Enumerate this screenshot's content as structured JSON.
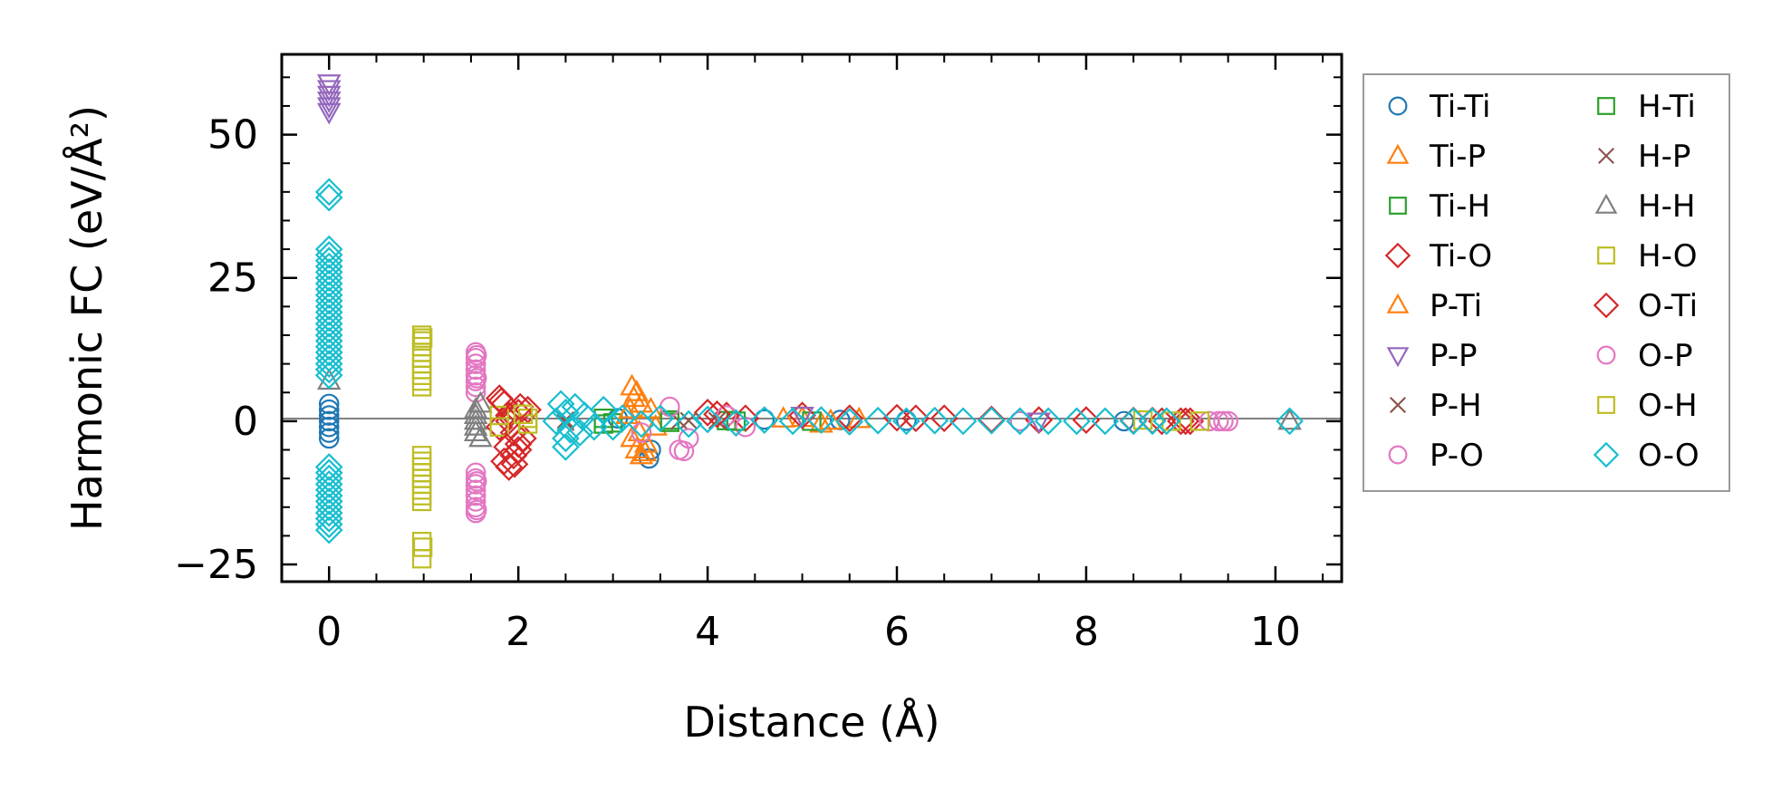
{
  "chart_data": {
    "type": "scatter",
    "xlabel": "Distance (Å)",
    "ylabel": "Harmonic FC (eV/Å²)",
    "xlim": [
      -0.5,
      10.7
    ],
    "ylim": [
      -28,
      64
    ],
    "x_ticks": [
      0,
      2,
      4,
      6,
      8,
      10
    ],
    "x_tick_labels": [
      "0",
      "2",
      "4",
      "6",
      "8",
      "10"
    ],
    "y_ticks": [
      -25,
      0,
      25,
      50
    ],
    "y_tick_labels": [
      "−25",
      "0",
      "25",
      "50"
    ],
    "zero_line": true,
    "grid": false,
    "legend_position": "outside-right",
    "legend_columns": 2,
    "series": [
      {
        "name": "Ti-Ti",
        "marker": "circle",
        "color": "#1f77b4",
        "points": [
          [
            0,
            0
          ],
          [
            0,
            2
          ],
          [
            0,
            -2
          ],
          [
            0,
            1
          ],
          [
            0,
            -1
          ],
          [
            0,
            3
          ],
          [
            0,
            -3
          ],
          [
            3.05,
            0.5
          ],
          [
            3.38,
            -6.5
          ],
          [
            3.4,
            -5
          ],
          [
            4.6,
            0.3
          ],
          [
            5.4,
            0.2
          ],
          [
            6.1,
            0.1
          ],
          [
            7.3,
            0
          ],
          [
            8.4,
            0
          ]
        ]
      },
      {
        "name": "Ti-P",
        "marker": "triangle-up",
        "color": "#ff7f0e",
        "points": [
          [
            3.2,
            6
          ],
          [
            3.25,
            5
          ],
          [
            3.3,
            3
          ],
          [
            3.2,
            -3
          ],
          [
            3.25,
            -5
          ],
          [
            3.3,
            -6
          ],
          [
            3.35,
            -4
          ],
          [
            3.15,
            1
          ],
          [
            3.4,
            2
          ],
          [
            3.45,
            -1
          ],
          [
            5.0,
            0.5
          ],
          [
            5.2,
            -0.5
          ],
          [
            5.6,
            0.3
          ]
        ]
      },
      {
        "name": "Ti-H",
        "marker": "square",
        "color": "#2ca02c",
        "points": [
          [
            2.9,
            0.5
          ],
          [
            3.0,
            -0.3
          ],
          [
            3.6,
            0.2
          ],
          [
            4.2,
            0.1
          ],
          [
            5.1,
            0
          ]
        ]
      },
      {
        "name": "Ti-O",
        "marker": "diamond",
        "color": "#d62728",
        "points": [
          [
            1.8,
            4
          ],
          [
            1.85,
            3
          ],
          [
            1.9,
            1
          ],
          [
            1.95,
            -2
          ],
          [
            2.0,
            -4
          ],
          [
            1.85,
            -7
          ],
          [
            1.9,
            -8
          ],
          [
            1.95,
            -6
          ],
          [
            2.0,
            -5
          ],
          [
            2.05,
            -3
          ],
          [
            2.1,
            2
          ],
          [
            1.8,
            -1
          ],
          [
            1.9,
            0
          ],
          [
            2.0,
            1.5
          ],
          [
            4.0,
            1.5
          ],
          [
            4.2,
            1
          ],
          [
            4.4,
            0.5
          ],
          [
            5.0,
            1
          ],
          [
            5.5,
            0.5
          ],
          [
            6.0,
            0.6
          ],
          [
            6.5,
            0.5
          ],
          [
            7.0,
            0.3
          ],
          [
            7.5,
            0.2
          ],
          [
            8.0,
            0.2
          ],
          [
            8.5,
            0.1
          ],
          [
            8.8,
            0
          ],
          [
            9.0,
            0
          ],
          [
            9.1,
            0
          ]
        ]
      },
      {
        "name": "P-Ti",
        "marker": "triangle-up",
        "color": "#ff7f0e",
        "points": [
          [
            3.22,
            4
          ],
          [
            3.28,
            -2
          ],
          [
            3.34,
            -5.5
          ],
          [
            3.18,
            2
          ],
          [
            4.8,
            0.4
          ],
          [
            5.3,
            0
          ]
        ]
      },
      {
        "name": "P-P",
        "marker": "triangle-down",
        "color": "#9467bd",
        "points": [
          [
            0,
            59
          ],
          [
            0,
            58
          ],
          [
            0,
            57
          ],
          [
            0,
            56
          ],
          [
            0,
            55
          ],
          [
            0,
            54
          ],
          [
            5.0,
            1
          ],
          [
            7.5,
            0
          ]
        ]
      },
      {
        "name": "P-H",
        "marker": "x",
        "color": "#8c564b",
        "points": [
          [
            2.5,
            0.2
          ],
          [
            3.7,
            0
          ],
          [
            4.1,
            0.1
          ]
        ]
      },
      {
        "name": "P-O",
        "marker": "circle",
        "color": "#e377c2",
        "points": [
          [
            1.55,
            12
          ],
          [
            1.55,
            11
          ],
          [
            1.55,
            10
          ],
          [
            1.55,
            9
          ],
          [
            1.55,
            8
          ],
          [
            1.55,
            7
          ],
          [
            1.55,
            6
          ],
          [
            1.55,
            5
          ],
          [
            1.55,
            -9
          ],
          [
            1.55,
            -10
          ],
          [
            1.55,
            -11
          ],
          [
            1.55,
            -12
          ],
          [
            1.55,
            -13
          ],
          [
            1.55,
            -14
          ],
          [
            1.55,
            -15
          ],
          [
            1.55,
            -16
          ],
          [
            3.3,
            -2
          ],
          [
            3.7,
            -5
          ],
          [
            3.8,
            -3
          ],
          [
            4.2,
            1
          ],
          [
            4.4,
            -1
          ],
          [
            7.3,
            0
          ],
          [
            9.3,
            0
          ],
          [
            9.4,
            0
          ],
          [
            9.5,
            0
          ]
        ]
      },
      {
        "name": "H-Ti",
        "marker": "square",
        "color": "#2ca02c",
        "points": [
          [
            2.9,
            -0.5
          ],
          [
            3.6,
            -0.2
          ],
          [
            4.3,
            0
          ]
        ]
      },
      {
        "name": "H-P",
        "marker": "x",
        "color": "#8c564b",
        "points": [
          [
            2.5,
            -0.2
          ],
          [
            3.8,
            0.1
          ]
        ]
      },
      {
        "name": "H-H",
        "marker": "triangle-up",
        "color": "#7f7f7f",
        "points": [
          [
            0,
            7
          ],
          [
            1.55,
            2
          ],
          [
            1.55,
            1
          ],
          [
            1.55,
            0
          ],
          [
            1.55,
            -1
          ],
          [
            1.55,
            -2
          ],
          [
            1.6,
            -3
          ],
          [
            1.6,
            3
          ],
          [
            10.15,
            0
          ]
        ]
      },
      {
        "name": "H-O",
        "marker": "square",
        "color": "#bcbd22",
        "points": [
          [
            0.98,
            15
          ],
          [
            0.98,
            14
          ],
          [
            0.98,
            13
          ],
          [
            0.98,
            12
          ],
          [
            0.98,
            11
          ],
          [
            0.98,
            10
          ],
          [
            0.98,
            9
          ],
          [
            0.98,
            8
          ],
          [
            0.98,
            7
          ],
          [
            0.98,
            6
          ],
          [
            0.98,
            -6
          ],
          [
            0.98,
            -7
          ],
          [
            0.98,
            -8
          ],
          [
            0.98,
            -9
          ],
          [
            0.98,
            -10
          ],
          [
            0.98,
            -11
          ],
          [
            0.98,
            -12
          ],
          [
            0.98,
            -13
          ],
          [
            0.98,
            -14
          ],
          [
            0.98,
            -21
          ],
          [
            0.98,
            -24
          ],
          [
            1.8,
            1
          ],
          [
            1.8,
            -1
          ],
          [
            2.1,
            0.5
          ],
          [
            2.1,
            -0.5
          ]
        ]
      },
      {
        "name": "O-Ti",
        "marker": "diamond",
        "color": "#d62728",
        "points": [
          [
            1.82,
            3.5
          ],
          [
            1.88,
            -4.5
          ],
          [
            1.96,
            -7.5
          ],
          [
            2.02,
            2.5
          ],
          [
            4.1,
            1.2
          ],
          [
            6.2,
            0.5
          ],
          [
            8.7,
            0.1
          ],
          [
            9.05,
            0
          ]
        ]
      },
      {
        "name": "O-P",
        "marker": "circle",
        "color": "#e377c2",
        "points": [
          [
            1.56,
            11.5
          ],
          [
            1.56,
            -15.5
          ],
          [
            1.56,
            7.5
          ],
          [
            1.56,
            -10.5
          ],
          [
            3.6,
            2.5
          ],
          [
            3.75,
            -5.2
          ],
          [
            9.45,
            0
          ]
        ]
      },
      {
        "name": "O-H",
        "marker": "square",
        "color": "#bcbd22",
        "points": [
          [
            0.99,
            14.5
          ],
          [
            0.99,
            -22
          ],
          [
            2.05,
            1.2
          ],
          [
            8.6,
            0.2
          ],
          [
            8.9,
            0
          ],
          [
            9.2,
            0
          ]
        ]
      },
      {
        "name": "O-O",
        "marker": "diamond",
        "color": "#17becf",
        "points": [
          [
            0,
            40
          ],
          [
            0,
            39
          ],
          [
            0,
            30
          ],
          [
            0,
            29
          ],
          [
            0,
            28
          ],
          [
            0,
            27
          ],
          [
            0,
            26
          ],
          [
            0,
            25
          ],
          [
            0,
            24
          ],
          [
            0,
            23
          ],
          [
            0,
            22
          ],
          [
            0,
            21
          ],
          [
            0,
            20
          ],
          [
            0,
            19
          ],
          [
            0,
            18
          ],
          [
            0,
            17
          ],
          [
            0,
            16
          ],
          [
            0,
            15
          ],
          [
            0,
            14
          ],
          [
            0,
            13
          ],
          [
            0,
            12
          ],
          [
            0,
            11
          ],
          [
            0,
            10
          ],
          [
            0,
            9
          ],
          [
            0,
            8
          ],
          [
            0,
            -8
          ],
          [
            0,
            -9
          ],
          [
            0,
            -10
          ],
          [
            0,
            -11
          ],
          [
            0,
            -12
          ],
          [
            0,
            -13
          ],
          [
            0,
            -14
          ],
          [
            0,
            -15
          ],
          [
            0,
            -16
          ],
          [
            0,
            -17
          ],
          [
            0,
            -18
          ],
          [
            0,
            -19
          ],
          [
            2.4,
            0
          ],
          [
            2.45,
            3
          ],
          [
            2.5,
            -3
          ],
          [
            2.5,
            1.5
          ],
          [
            2.55,
            -1.5
          ],
          [
            2.6,
            2.5
          ],
          [
            2.65,
            -2
          ],
          [
            2.5,
            -4.5
          ],
          [
            2.7,
            1
          ],
          [
            2.8,
            -1
          ],
          [
            2.9,
            2
          ],
          [
            3.0,
            -1
          ],
          [
            3.1,
            0.5
          ],
          [
            3.3,
            -0.5
          ],
          [
            3.5,
            0.5
          ],
          [
            3.8,
            -0.5
          ],
          [
            4.0,
            0.3
          ],
          [
            4.3,
            -0.3
          ],
          [
            4.6,
            0.2
          ],
          [
            4.9,
            0
          ],
          [
            5.2,
            0.2
          ],
          [
            5.5,
            -0.1
          ],
          [
            5.8,
            0.1
          ],
          [
            6.1,
            0
          ],
          [
            6.4,
            0.1
          ],
          [
            6.7,
            0
          ],
          [
            7.0,
            0.1
          ],
          [
            7.3,
            0
          ],
          [
            7.6,
            0
          ],
          [
            7.9,
            0
          ],
          [
            8.2,
            0
          ],
          [
            8.5,
            0
          ],
          [
            8.7,
            0
          ],
          [
            8.85,
            0
          ],
          [
            10.15,
            0
          ]
        ]
      }
    ]
  }
}
